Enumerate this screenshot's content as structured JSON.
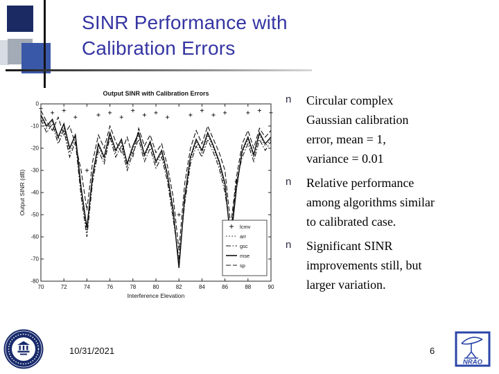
{
  "slide": {
    "title_lines": [
      "SINR Performance with",
      "Calibration Errors"
    ],
    "title_color": "#3434a3",
    "footer_date": "10/31/2021",
    "page_number": "6"
  },
  "bullets": {
    "marker_char": "n",
    "items": [
      [
        "Circular complex",
        "Gaussian calibration",
        "error, mean = 1,",
        "variance = 0.01"
      ],
      [
        "Relative performance",
        "among algorithms similar",
        "to calibrated case."
      ],
      [
        "Significant SINR",
        "improvements still, but",
        "larger variation."
      ]
    ]
  },
  "logos": {
    "nrao_text": "NRAO"
  },
  "chart_data": {
    "type": "line",
    "title": "Output SINR with Calibration Errors",
    "xlabel": "Interference Elevation",
    "ylabel": "Output SINR (dB)",
    "xlim": [
      70,
      90
    ],
    "ylim": [
      -80,
      0
    ],
    "xticks": [
      70,
      72,
      74,
      76,
      78,
      80,
      82,
      84,
      86,
      88,
      90
    ],
    "yticks": [
      0,
      -10,
      -20,
      -30,
      -40,
      -50,
      -60,
      -70,
      -80
    ],
    "grid": false,
    "legend_position": "lower right",
    "legend": [
      {
        "label": "lcmv",
        "style": "plus"
      },
      {
        "label": "arr",
        "style": "dotted"
      },
      {
        "label": "gsc",
        "style": "dashdot"
      },
      {
        "label": "mse",
        "style": "solid"
      },
      {
        "label": "sp",
        "style": "dashed"
      }
    ],
    "x": [
      70,
      70.5,
      71,
      71.5,
      72,
      72.5,
      73,
      73.5,
      74,
      74.5,
      75,
      75.5,
      76,
      76.5,
      77,
      77.5,
      78,
      78.5,
      79,
      79.5,
      80,
      80.5,
      81,
      81.5,
      82,
      82.5,
      83,
      83.5,
      84,
      84.5,
      85,
      85.5,
      86,
      86.5,
      87,
      87.5,
      88,
      88.5,
      89,
      89.5,
      90
    ],
    "series": [
      {
        "name": "lcmv",
        "style": "plus",
        "x": [
          70,
          71,
          72,
          73,
          74,
          75,
          76,
          77,
          78,
          79,
          80,
          81,
          82,
          83,
          84,
          85,
          86,
          87,
          88,
          89,
          90
        ],
        "values": [
          -2,
          -4,
          -3,
          -6,
          -30,
          -5,
          -4,
          -6,
          -3,
          -5,
          -4,
          -6,
          -50,
          -5,
          -3,
          -5,
          -4,
          -35,
          -4,
          -3,
          -4
        ]
      },
      {
        "name": "arr",
        "style": "dotted",
        "values": [
          -6,
          -11,
          -8,
          -16,
          -11,
          -22,
          -15,
          -40,
          -58,
          -33,
          -19,
          -25,
          -14,
          -22,
          -17,
          -28,
          -20,
          -14,
          -24,
          -18,
          -27,
          -22,
          -33,
          -50,
          -72,
          -43,
          -25,
          -17,
          -22,
          -14,
          -20,
          -27,
          -38,
          -60,
          -36,
          -22,
          -16,
          -24,
          -14,
          -19,
          -16
        ]
      },
      {
        "name": "gsc",
        "style": "dashdot",
        "values": [
          -7,
          -13,
          -9,
          -18,
          -12,
          -24,
          -17,
          -42,
          -60,
          -35,
          -21,
          -27,
          -15,
          -24,
          -19,
          -30,
          -22,
          -16,
          -26,
          -20,
          -29,
          -24,
          -35,
          -52,
          -70,
          -45,
          -27,
          -19,
          -24,
          -16,
          -22,
          -29,
          -40,
          -58,
          -35,
          -24,
          -18,
          -26,
          -16,
          -21,
          -17
        ]
      },
      {
        "name": "mse",
        "style": "solid",
        "values": [
          -5,
          -10,
          -7,
          -15,
          -9,
          -20,
          -14,
          -38,
          -56,
          -32,
          -18,
          -24,
          -13,
          -21,
          -16,
          -27,
          -19,
          -13,
          -23,
          -17,
          -26,
          -21,
          -32,
          -48,
          -74,
          -42,
          -24,
          -16,
          -21,
          -13,
          -19,
          -26,
          -36,
          -62,
          -38,
          -21,
          -15,
          -23,
          -13,
          -18,
          -15
        ]
      },
      {
        "name": "sp",
        "style": "dashed",
        "values": [
          -3,
          -8,
          -12,
          -6,
          -14,
          -10,
          -18,
          -30,
          -48,
          -26,
          -14,
          -20,
          -10,
          -17,
          -22,
          -15,
          -24,
          -11,
          -19,
          -14,
          -22,
          -18,
          -28,
          -42,
          -66,
          -36,
          -20,
          -12,
          -18,
          -10,
          -16,
          -22,
          -30,
          -55,
          -33,
          -18,
          -12,
          -20,
          -11,
          -15,
          -12
        ]
      }
    ]
  }
}
